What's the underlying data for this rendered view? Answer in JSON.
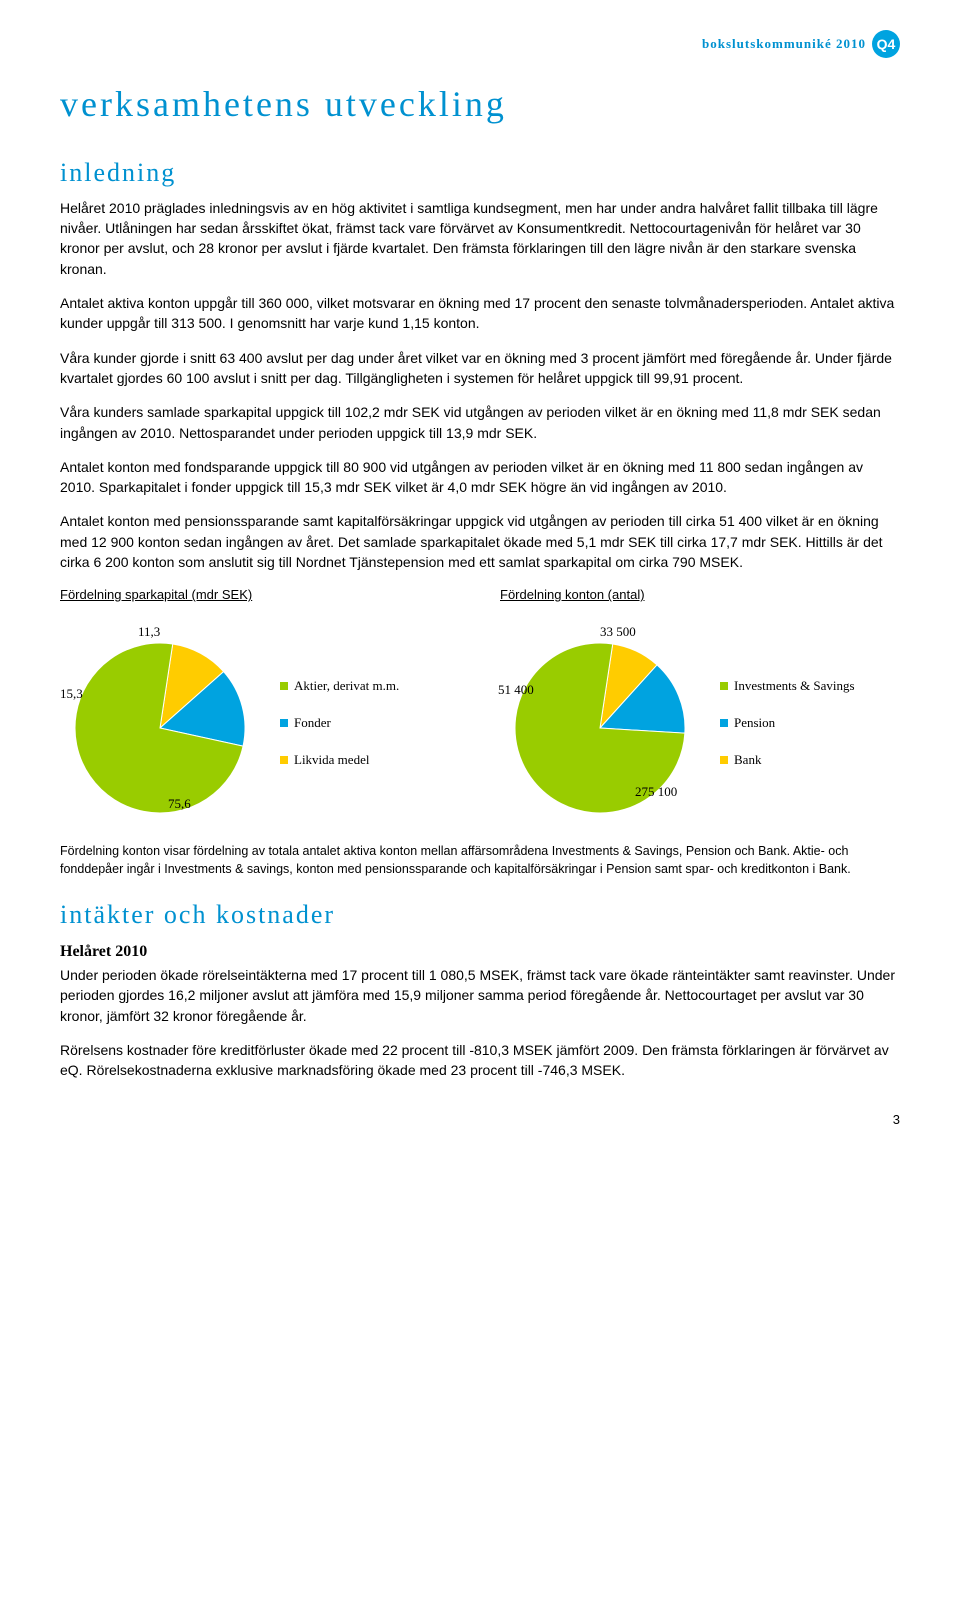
{
  "header": {
    "text": "bokslutskommuniké 2010",
    "badge": "Q4"
  },
  "title": "verksamhetens utveckling",
  "section1_heading": "inledning",
  "paragraphs": {
    "p1": "Helåret 2010 präglades inledningsvis av en hög aktivitet i samtliga kundsegment, men har under andra halvåret fallit tillbaka till lägre nivåer. Utlåningen har sedan årsskiftet ökat, främst tack vare förvärvet av Konsumentkredit. Nettocourtagenivån för helåret var 30 kronor per avslut, och 28 kronor per avslut i fjärde kvartalet. Den främsta förklaringen till den lägre nivån är den starkare svenska kronan.",
    "p2": "Antalet aktiva konton uppgår till 360 000, vilket motsvarar en ökning med 17 procent den senaste tolvmånadersperioden. Antalet aktiva kunder uppgår till 313 500. I genomsnitt har varje kund 1,15 konton.",
    "p3": "Våra kunder gjorde i snitt 63 400 avslut per dag under året vilket var en ökning med 3 procent jämfört med föregående år. Under fjärde kvartalet gjordes 60 100 avslut i snitt per dag. Tillgängligheten i systemen för helåret uppgick till 99,91 procent.",
    "p4": "Våra kunders samlade sparkapital uppgick till 102,2 mdr SEK vid utgången av perioden vilket är en ökning med 11,8 mdr SEK sedan ingången av 2010. Nettosparandet under perioden uppgick till 13,9 mdr SEK.",
    "p5": "Antalet konton med fondsparande uppgick till 80 900 vid utgången av perioden vilket är en ökning med 11 800 sedan ingången av 2010. Sparkapitalet i fonder uppgick till 15,3 mdr SEK vilket är 4,0 mdr SEK högre än vid ingången av 2010.",
    "p6": "Antalet konton med pensionssparande samt kapitalförsäkringar uppgick vid utgången av perioden till cirka 51 400 vilket är en ökning med 12 900 konton sedan ingången av året. Det samlade sparkapitalet ökade med 5,1 mdr SEK till cirka 17,7 mdr SEK. Hittills är det cirka 6 200 konton som anslutit sig till Nordnet Tjänstepension med ett samlat sparkapital om cirka 790 MSEK."
  },
  "chart1": {
    "title": "Fördelning sparkapital (mdr SEK)",
    "type": "pie",
    "slices": [
      {
        "label": "75,6",
        "value": 75.6,
        "color": "#99cc00"
      },
      {
        "label": "15,3",
        "value": 15.3,
        "color": "#00a3e0"
      },
      {
        "label": "11,3",
        "value": 11.3,
        "color": "#ffcc00"
      }
    ],
    "legend": [
      {
        "label": "Aktier, derivat m.m.",
        "color": "#99cc00"
      },
      {
        "label": "Fonder",
        "color": "#00a3e0"
      },
      {
        "label": "Likvida medel",
        "color": "#ffcc00"
      }
    ]
  },
  "chart2": {
    "title": "Fördelning konton (antal)",
    "type": "pie",
    "slices": [
      {
        "label": "275 100",
        "value": 275100,
        "color": "#99cc00"
      },
      {
        "label": "51 400",
        "value": 51400,
        "color": "#00a3e0"
      },
      {
        "label": "33 500",
        "value": 33500,
        "color": "#ffcc00"
      }
    ],
    "legend": [
      {
        "label": "Investments & Savings",
        "color": "#99cc00"
      },
      {
        "label": "Pension",
        "color": "#00a3e0"
      },
      {
        "label": "Bank",
        "color": "#ffcc00"
      }
    ]
  },
  "footnote": "Fördelning konton visar fördelning av totala antalet aktiva konton mellan affärsområdena Investments & Savings, Pension och Bank. Aktie- och fonddepåer ingår i Investments & savings, konton med pensionssparande och kapitalförsäkringar i Pension samt spar- och kreditkonton i Bank.",
  "section2_heading": "intäkter och kostnader",
  "section2_sub": "Helåret 2010",
  "section2_p1": "Under perioden ökade rörelseintäkterna med 17 procent till 1 080,5 MSEK, främst tack vare ökade ränteintäkter samt reavinster. Under perioden gjordes 16,2 miljoner avslut att jämföra med 15,9 miljoner samma period föregående år. Nettocourtaget per avslut var 30 kronor, jämfört 32 kronor föregående år.",
  "section2_p2": "Rörelsens kostnader före kreditförluster ökade med 22 procent till -810,3 MSEK jämfört 2009. Den främsta förklaringen är förvärvet av eQ. Rörelsekostnaderna exklusive marknadsföring ökade med 23 procent till -746,3 MSEK.",
  "page_number": "3"
}
